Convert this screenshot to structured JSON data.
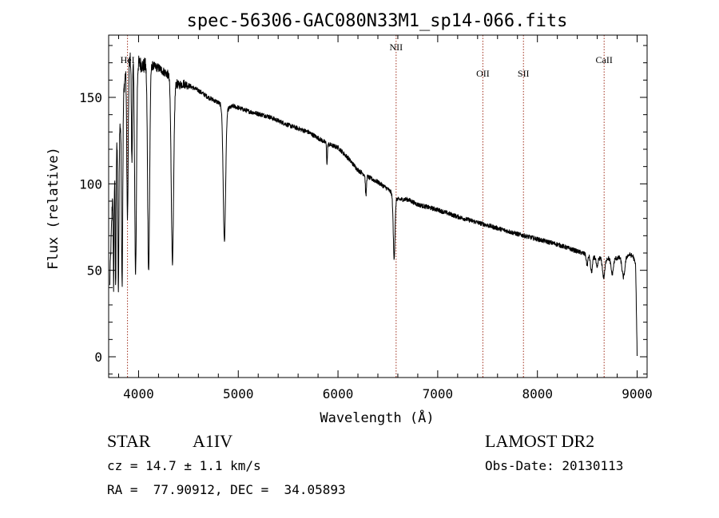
{
  "chart_data": {
    "type": "line",
    "title": "spec-56306-GAC080N33M1_sp14-066.fits",
    "xlabel": "Wavelength (Å)",
    "ylabel": "Flux (relative)",
    "xlim": [
      3700,
      9100
    ],
    "ylim": [
      -12,
      186
    ],
    "xticks": [
      4000,
      5000,
      6000,
      7000,
      8000,
      9000
    ],
    "yticks": [
      0,
      50,
      100,
      150
    ],
    "line_color": "#000000",
    "marker_color": "#a0301e",
    "spectral_lines": [
      {
        "name": "HeI",
        "x": 3889
      },
      {
        "name": "NII",
        "x": 6583
      },
      {
        "name": "OII",
        "x": 7453
      },
      {
        "name": "SII",
        "x": 7860
      },
      {
        "name": "CaII",
        "x": 8669
      }
    ],
    "continuum_anchors": [
      [
        3710,
        40
      ],
      [
        3740,
        95
      ],
      [
        3780,
        120
      ],
      [
        3830,
        140
      ],
      [
        3870,
        165
      ],
      [
        3900,
        172
      ],
      [
        3950,
        172
      ],
      [
        4000,
        170
      ],
      [
        4050,
        168
      ],
      [
        4100,
        170
      ],
      [
        4150,
        168
      ],
      [
        4200,
        167
      ],
      [
        4250,
        165
      ],
      [
        4300,
        163
      ],
      [
        4400,
        157
      ],
      [
        4450,
        158
      ],
      [
        4500,
        157
      ],
      [
        4600,
        154
      ],
      [
        4700,
        150
      ],
      [
        4800,
        147
      ],
      [
        4880,
        143
      ],
      [
        4950,
        145
      ],
      [
        5000,
        144
      ],
      [
        5100,
        142
      ],
      [
        5300,
        139
      ],
      [
        5500,
        134
      ],
      [
        5700,
        130
      ],
      [
        5900,
        123
      ],
      [
        6000,
        121
      ],
      [
        6100,
        115
      ],
      [
        6200,
        108
      ],
      [
        6300,
        104
      ],
      [
        6400,
        101
      ],
      [
        6500,
        97
      ],
      [
        6600,
        91
      ],
      [
        6700,
        91
      ],
      [
        6800,
        88
      ],
      [
        7000,
        85
      ],
      [
        7200,
        81
      ],
      [
        7500,
        76
      ],
      [
        7800,
        71
      ],
      [
        8000,
        68
      ],
      [
        8200,
        65
      ],
      [
        8400,
        61
      ],
      [
        8600,
        57
      ],
      [
        8800,
        57
      ],
      [
        8930,
        59
      ],
      [
        8960,
        58
      ],
      [
        8985,
        53
      ],
      [
        9000,
        1
      ]
    ],
    "absorption_lines": [
      {
        "x": 3750,
        "depth": 60,
        "width": 4
      },
      {
        "x": 3770,
        "depth": 75,
        "width": 4
      },
      {
        "x": 3798,
        "depth": 90,
        "width": 5
      },
      {
        "x": 3835,
        "depth": 100,
        "width": 6
      },
      {
        "x": 3889,
        "depth": 90,
        "width": 7
      },
      {
        "x": 3933,
        "depth": 60,
        "width": 5
      },
      {
        "x": 3970,
        "depth": 125,
        "width": 9
      },
      {
        "x": 4101,
        "depth": 120,
        "width": 10
      },
      {
        "x": 4340,
        "depth": 105,
        "width": 12
      },
      {
        "x": 4861,
        "depth": 77,
        "width": 12
      },
      {
        "x": 5890,
        "depth": 12,
        "width": 4
      },
      {
        "x": 6280,
        "depth": 12,
        "width": 5
      },
      {
        "x": 6563,
        "depth": 36,
        "width": 9
      },
      {
        "x": 8498,
        "depth": 6,
        "width": 8
      },
      {
        "x": 8542,
        "depth": 9,
        "width": 10
      },
      {
        "x": 8598,
        "depth": 6,
        "width": 8
      },
      {
        "x": 8665,
        "depth": 11,
        "width": 12
      },
      {
        "x": 8750,
        "depth": 9,
        "width": 12
      },
      {
        "x": 8863,
        "depth": 12,
        "width": 14
      }
    ],
    "noise_amplitude": 1.3
  },
  "info": {
    "object_type": "STAR",
    "spectral_class": "A1IV",
    "survey": "LAMOST DR2",
    "cz": "cz = 14.7 ± 1.1 km/s",
    "obs_date": "Obs-Date: 20130113",
    "radec": "RA =  77.90912, DEC =  34.05893"
  }
}
